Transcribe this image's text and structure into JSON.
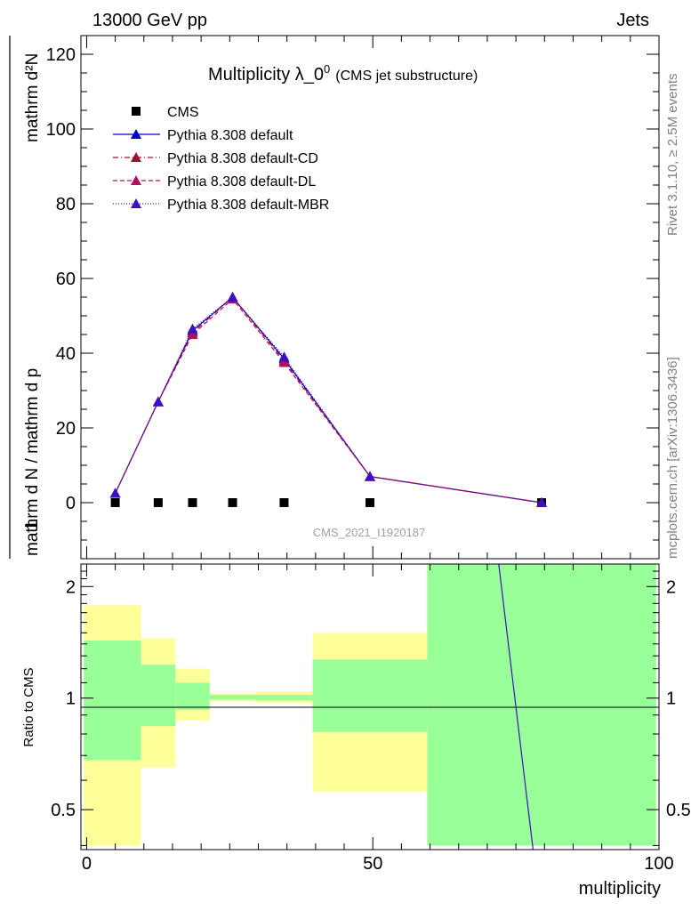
{
  "header": {
    "left": "13000 GeV pp",
    "right": "Jets"
  },
  "side_labels": {
    "rivet": "Rivet 3.1.10, ≥ 2.5M events",
    "mcplots": "mcplots.cern.ch [arXiv:1306.3436]"
  },
  "chart_data": [
    {
      "type": "line",
      "title_main": "Multiplicity λ_0",
      "title_sup": "0",
      "title_sub": "(CMS jet substructure)",
      "watermark": "CMS_2021_I1920187",
      "ylabel_num": "mathrm d²N",
      "ylabel_den": "mathrm d N / mathrm d p",
      "xlim": [
        -1,
        100
      ],
      "ylim": [
        -15,
        125
      ],
      "yticks": [
        0,
        20,
        40,
        60,
        80,
        100,
        120
      ],
      "legend": [
        {
          "label": "CMS",
          "color": "#000000",
          "marker": "square",
          "dash": ""
        },
        {
          "label": "Pythia 8.308 default",
          "color": "#0000cc",
          "marker": "triangle",
          "dash": ""
        },
        {
          "label": "Pythia 8.308 default-CD",
          "color": "#a01030",
          "marker": "triangle",
          "dash": "6,3,1,3"
        },
        {
          "label": "Pythia 8.308 default-DL",
          "color": "#b01060",
          "marker": "triangle",
          "dash": "5,3"
        },
        {
          "label": "Pythia 8.308 default-MBR",
          "color": "#3a10c0",
          "marker": "triangle",
          "dash": "1,2"
        }
      ],
      "series": [
        {
          "name": "CMS",
          "x": [
            5,
            12.5,
            18.5,
            25.5,
            34.5,
            49.5,
            79.5
          ],
          "y": [
            0,
            0,
            0,
            0,
            0,
            0,
            0
          ]
        },
        {
          "name": "Pythia 8.308 default",
          "x": [
            5,
            12.5,
            18.5,
            25.5,
            34.5,
            49.5,
            79.5
          ],
          "y": [
            2.5,
            27,
            46,
            55,
            38.5,
            7,
            0
          ]
        },
        {
          "name": "Pythia 8.308 default-CD",
          "x": [
            5,
            12.5,
            18.5,
            25.5,
            34.5,
            49.5,
            79.5
          ],
          "y": [
            2.5,
            27,
            45.5,
            55,
            38,
            7,
            0
          ]
        },
        {
          "name": "Pythia 8.308 default-DL",
          "x": [
            5,
            12.5,
            18.5,
            25.5,
            34.5,
            49.5,
            79.5
          ],
          "y": [
            2.5,
            27,
            45,
            54.5,
            37.5,
            7,
            0
          ]
        },
        {
          "name": "Pythia 8.308 default-MBR",
          "x": [
            5,
            12.5,
            18.5,
            25.5,
            34.5,
            49.5,
            79.5
          ],
          "y": [
            2.5,
            27,
            46.5,
            55,
            39,
            7,
            0
          ]
        }
      ]
    },
    {
      "type": "area",
      "ylabel": "Ratio to CMS",
      "xlabel": "multiplicity",
      "log_y": true,
      "xlim": [
        -1,
        100
      ],
      "ylim": [
        0.39,
        2.3
      ],
      "xticks": [
        0,
        50,
        100
      ],
      "yticks": [
        0.5,
        1,
        2
      ],
      "bands": [
        {
          "x0": -0.5,
          "x1": 9.5,
          "yellow": [
            0.4,
            1.78
          ],
          "green": [
            0.68,
            1.43
          ]
        },
        {
          "x0": 9.5,
          "x1": 15.5,
          "yellow": [
            0.65,
            1.45
          ],
          "green": [
            0.84,
            1.23
          ]
        },
        {
          "x0": 15.5,
          "x1": 21.5,
          "yellow": [
            0.87,
            1.2
          ],
          "green": [
            0.93,
            1.1
          ]
        },
        {
          "x0": 21.5,
          "x1": 29.5,
          "yellow": [
            0.98,
            1.03
          ],
          "green": [
            0.99,
            1.02
          ]
        },
        {
          "x0": 29.5,
          "x1": 39.5,
          "yellow": [
            0.97,
            1.04
          ],
          "green": [
            0.985,
            1.02
          ]
        },
        {
          "x0": 39.5,
          "x1": 59.5,
          "yellow": [
            0.56,
            1.5
          ],
          "green": [
            0.81,
            1.27
          ]
        },
        {
          "x0": 59.5,
          "x1": 99.5,
          "yellow": [
            0.4,
            2.3
          ],
          "green": [
            0.4,
            2.3
          ]
        }
      ],
      "line_segment": {
        "x": [
          72,
          78
        ],
        "y": [
          2.3,
          0.39
        ]
      }
    }
  ]
}
